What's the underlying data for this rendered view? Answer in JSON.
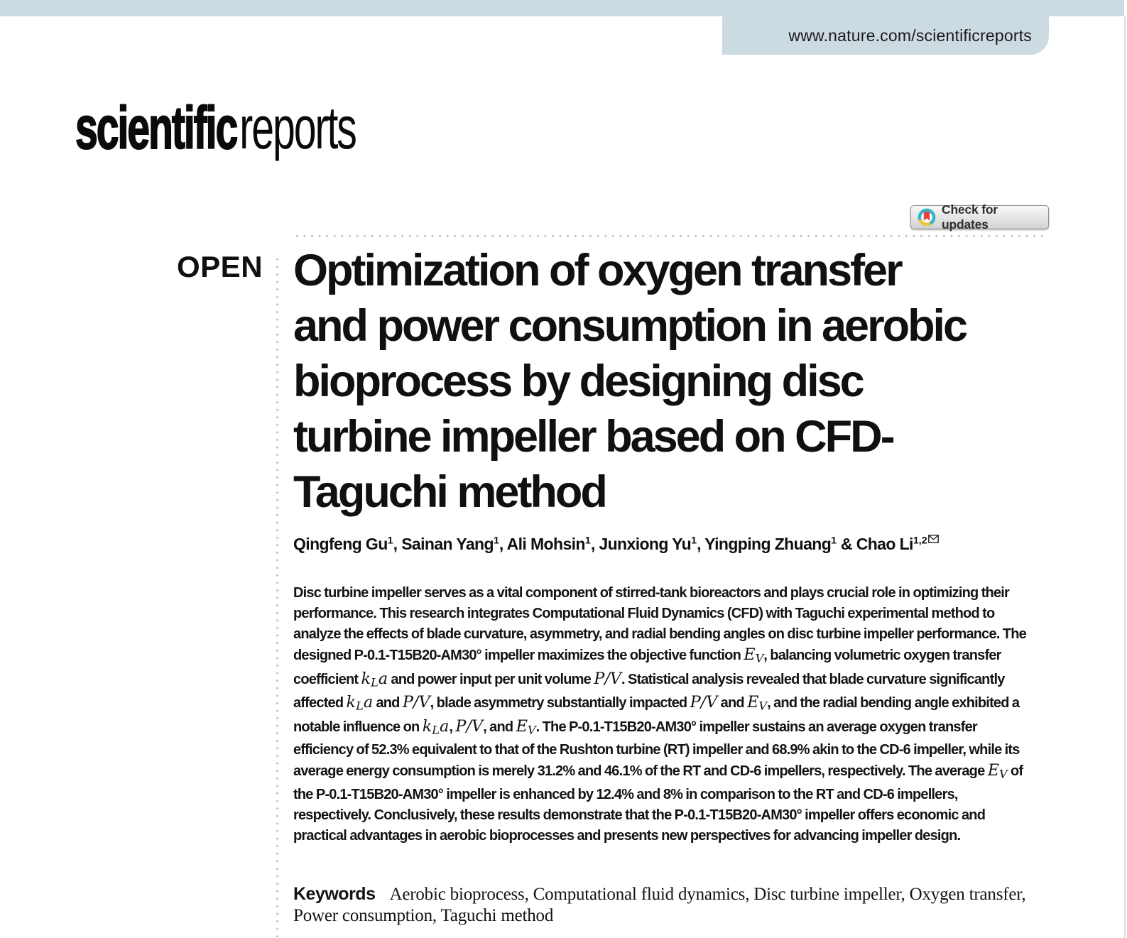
{
  "header": {
    "url": "www.nature.com/scientificreports",
    "banner_color": "#ccdbe1"
  },
  "logo": {
    "bold": "scientific",
    "light": "reports"
  },
  "crossmark": {
    "label": "Check for updates",
    "colors": {
      "teal": "#35b5c9",
      "yellow": "#f2c53d",
      "red": "#e64045"
    }
  },
  "open_access": {
    "label": "OPEN"
  },
  "article": {
    "title_lines": [
      "Optimization of oxygen transfer",
      "and power consumption in aerobic",
      "bioprocess by designing disc",
      "turbine impeller based on CFD-",
      "Taguchi method"
    ],
    "authors": {
      "segments": [
        {
          "t": "Qingfeng Gu"
        },
        {
          "s": "1"
        },
        {
          "t": ", Sainan Yang"
        },
        {
          "s": "1"
        },
        {
          "t": ", Ali Mohsin"
        },
        {
          "s": "1"
        },
        {
          "t": ", Junxiong Yu"
        },
        {
          "s": "1"
        },
        {
          "t": ", Yingping Zhuang"
        },
        {
          "s": "1"
        },
        {
          "t": " & Chao Li"
        },
        {
          "s": "1,2"
        },
        {
          "e": "envelope"
        }
      ]
    },
    "abstract": {
      "segments": [
        {
          "t": "Disc turbine impeller serves as a vital component of stirred-tank bioreactors and plays crucial role in optimizing their performance. This research integrates Computational Fluid Dynamics (CFD) with Taguchi experimental method to analyze the effects of blade curvature, asymmetry, and radial bending angles on disc turbine impeller performance. The designed P-0.1-T15B20-AM30° impeller maximizes the objective function "
        },
        {
          "m": "E_{V}"
        },
        {
          "t": ", balancing volumetric oxygen transfer coefficient "
        },
        {
          "m": "k_{L}a"
        },
        {
          "t": " and power input per unit volume "
        },
        {
          "m": "P/V"
        },
        {
          "t": ". Statistical analysis revealed that blade curvature significantly affected "
        },
        {
          "m": "k_{L}a"
        },
        {
          "t": " and "
        },
        {
          "m": "P/V"
        },
        {
          "t": ", blade asymmetry substantially impacted "
        },
        {
          "m": "P/V"
        },
        {
          "t": " and "
        },
        {
          "m": "E_{V}"
        },
        {
          "t": ", and the radial bending angle exhibited a notable influence on "
        },
        {
          "m": "k_{L}a"
        },
        {
          "t": ", "
        },
        {
          "m": "P/V"
        },
        {
          "t": ", and "
        },
        {
          "m": "E_{V}"
        },
        {
          "t": ". The P-0.1-T15B20-AM30° impeller sustains an average oxygen transfer efficiency of 52.3% equivalent to that of the Rushton turbine (RT) impeller and 68.9% akin to the CD-6 impeller, while its average energy consumption is merely 31.2% and 46.1% of the RT and CD-6 impellers, respectively. The average "
        },
        {
          "m": "E_{V}"
        },
        {
          "t": " of the P-0.1-T15B20-AM30° impeller is enhanced by 12.4% and 8% in comparison to the RT and CD-6 impellers, respectively. Conclusively, these results demonstrate that the P-0.1-T15B20-AM30° impeller offers economic and practical advantages in aerobic bioprocesses and presents new perspectives for advancing impeller design."
        }
      ]
    },
    "keywords": {
      "label": "Keywords",
      "text": "Aerobic bioprocess, Computational fluid dynamics, Disc turbine impeller, Oxygen transfer, Power consumption, Taguchi method"
    }
  }
}
